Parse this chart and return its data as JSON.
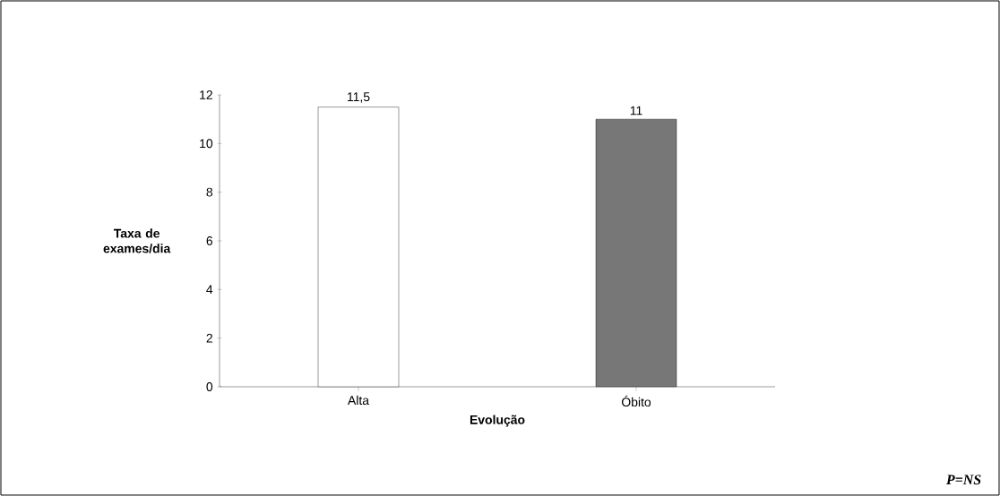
{
  "chart_data": {
    "type": "bar",
    "xlabel": "Evolução",
    "ylabel": "Taxa de exames/dia",
    "categories": [
      "Alta",
      "Óbito"
    ],
    "values": [
      11.5,
      11
    ],
    "value_labels": [
      "11,5",
      "11"
    ],
    "colors": [
      "#ffffff",
      "#777777"
    ],
    "ylim": [
      0,
      12
    ],
    "yticks": [
      0,
      2,
      4,
      6,
      8,
      10,
      12
    ],
    "annotations": [
      "P=NS"
    ]
  }
}
